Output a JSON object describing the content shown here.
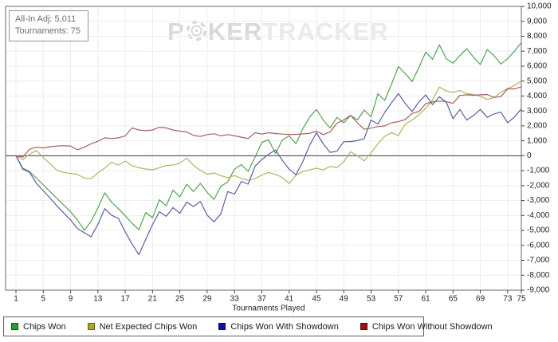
{
  "info_box": {
    "line1": "All-In Adj: 5,011",
    "line2": "Tournaments: 75"
  },
  "watermark": {
    "part1": "P",
    "part2": "KER",
    "part3": "TRACKER"
  },
  "axes": {
    "x_label": "Tournaments Played",
    "x_ticks": [
      1,
      5,
      9,
      13,
      17,
      21,
      25,
      29,
      33,
      37,
      41,
      45,
      49,
      53,
      57,
      61,
      65,
      69,
      73,
      75
    ],
    "y_min": -9000,
    "y_max": 10000,
    "y_tick_step": 1000
  },
  "colors": {
    "grid_line": "#ededed",
    "zero_line": "#3a3a3a",
    "plot_border": "#666666",
    "tick_text": "#1f1f1f",
    "watermark_dark": "#d9d9d9",
    "watermark_light": "#eaeaea"
  },
  "chart_data": {
    "type": "line",
    "title": "",
    "xlabel": "Tournaments Played",
    "ylabel": "",
    "xlim": [
      1,
      75
    ],
    "ylim": [
      -9000,
      10000
    ],
    "grid": true,
    "legend_position": "bottom",
    "x_ticks": [
      1,
      5,
      9,
      13,
      17,
      21,
      25,
      29,
      33,
      37,
      41,
      45,
      49,
      53,
      57,
      61,
      65,
      69,
      73,
      75
    ],
    "x_description": "Tournament number 1..75, one value per tournament",
    "series": [
      {
        "name": "Chips Won",
        "color": "#52a352",
        "legend_color": "#2d9b2d",
        "values": [
          0,
          -830,
          -1060,
          -1500,
          -1950,
          -2400,
          -2850,
          -3300,
          -3750,
          -4300,
          -4990,
          -4400,
          -3500,
          -2480,
          -3100,
          -3540,
          -4020,
          -4510,
          -4950,
          -3800,
          -4150,
          -2950,
          -3350,
          -2300,
          -2750,
          -1900,
          -2400,
          -1850,
          -2450,
          -2920,
          -2050,
          -1750,
          -900,
          -600,
          -1050,
          -100,
          900,
          1060,
          150,
          1060,
          1330,
          800,
          1800,
          2600,
          3100,
          2390,
          1860,
          2570,
          2200,
          2700,
          2400,
          3060,
          2600,
          4150,
          3700,
          4800,
          5970,
          5500,
          4960,
          5900,
          6940,
          6460,
          7430,
          6500,
          6200,
          6700,
          7170,
          6600,
          6110,
          7110,
          6700,
          6140,
          6500,
          7000,
          7590
        ]
      },
      {
        "name": "Net Expected Chips Won",
        "color": "#b5b163",
        "legend_color": "#a8a832",
        "values": [
          0,
          -265,
          100,
          350,
          -125,
          -530,
          -975,
          -1115,
          -1190,
          -1240,
          -1500,
          -1540,
          -1150,
          -830,
          -440,
          -620,
          -354,
          -670,
          -800,
          -885,
          -940,
          -800,
          -655,
          -620,
          -500,
          -150,
          -655,
          -975,
          -1240,
          -1150,
          -1330,
          -1470,
          -1330,
          -1500,
          -1650,
          -1540,
          -1290,
          -1115,
          -1250,
          -1450,
          -1860,
          -1300,
          -1060,
          -950,
          -830,
          -950,
          -710,
          -800,
          -400,
          265,
          0,
          -350,
          200,
          800,
          1300,
          1550,
          1350,
          2120,
          2390,
          2740,
          3190,
          3720,
          4600,
          4340,
          4250,
          4370,
          4160,
          4100,
          3980,
          3770,
          3890,
          4250,
          4510,
          4700,
          5011
        ]
      },
      {
        "name": "Chips Won With Showdown",
        "color": "#5d5da5",
        "legend_color": "#1212a0",
        "values": [
          0,
          -900,
          -1110,
          -1850,
          -2350,
          -2830,
          -3360,
          -3840,
          -4300,
          -4870,
          -5150,
          -5430,
          -4600,
          -3540,
          -3980,
          -4190,
          -5100,
          -5900,
          -6630,
          -5600,
          -4600,
          -3750,
          -4050,
          -3470,
          -3850,
          -3100,
          -3400,
          -3060,
          -3980,
          -4420,
          -3890,
          -2400,
          -2570,
          -1720,
          -1900,
          -710,
          -250,
          100,
          390,
          -300,
          -900,
          -1270,
          -400,
          700,
          1540,
          800,
          230,
          300,
          940,
          950,
          1010,
          1150,
          2390,
          2120,
          2900,
          3550,
          4160,
          3500,
          2960,
          3600,
          4070,
          3420,
          3950,
          3590,
          2480,
          3100,
          2390,
          2700,
          3100,
          2570,
          2800,
          2920,
          2210,
          2600,
          3130
        ]
      },
      {
        "name": "Chips Won Without Showdown",
        "color": "#a66060",
        "legend_color": "#a01212",
        "values": [
          0,
          -100,
          440,
          570,
          520,
          600,
          655,
          670,
          655,
          400,
          570,
          800,
          970,
          1200,
          1150,
          1200,
          1330,
          1860,
          1720,
          1680,
          1720,
          1910,
          1860,
          1720,
          1650,
          1590,
          1360,
          1290,
          1420,
          1470,
          1330,
          1420,
          1330,
          1240,
          1150,
          1540,
          1450,
          1540,
          1490,
          1450,
          1430,
          1430,
          1460,
          1500,
          1650,
          1420,
          1600,
          2180,
          2400,
          2710,
          2200,
          1770,
          1850,
          1950,
          2000,
          2210,
          2280,
          2420,
          2830,
          2950,
          3490,
          3600,
          3660,
          3620,
          3510,
          4040,
          4080,
          4050,
          4080,
          4100,
          3900,
          3960,
          4480,
          4470,
          4620
        ]
      }
    ]
  }
}
